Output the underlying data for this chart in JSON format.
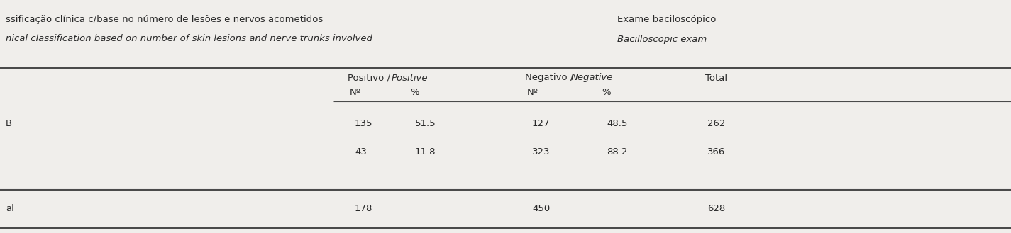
{
  "header1_pt": "ssificação clínica c/base no número de lesões e nervos acometidos",
  "header1_en": "nical classification based on number of skin lesions and nerve trunks involved",
  "header2_pt": "Exame baciloscópico",
  "header2_en": "Bacilloscopic exam",
  "subh_pos": "Positivo / ",
  "subh_pos_en": "Positive",
  "subh_neg": "Negativo / ",
  "subh_neg_en": "Negative",
  "col_total": "Total",
  "subheader_n": "Nº",
  "subheader_pct": "%",
  "row1_label": "B",
  "row2_label": "",
  "row_total_label": "al",
  "row1_pos_n": "135",
  "row1_pos_pct": "51.5",
  "row1_neg_n": "127",
  "row1_neg_pct": "48.5",
  "row1_total": "262",
  "row2_pos_n": "43",
  "row2_pos_pct": "11.8",
  "row2_neg_n": "323",
  "row2_neg_pct": "88.2",
  "row2_total": "366",
  "total_pos_n": "178",
  "total_neg_n": "450",
  "total_total": "628",
  "bg_color": "#f0eeeb",
  "text_color": "#2a2a2a",
  "line_color": "#4a4a4a",
  "fontsize": 9.5
}
